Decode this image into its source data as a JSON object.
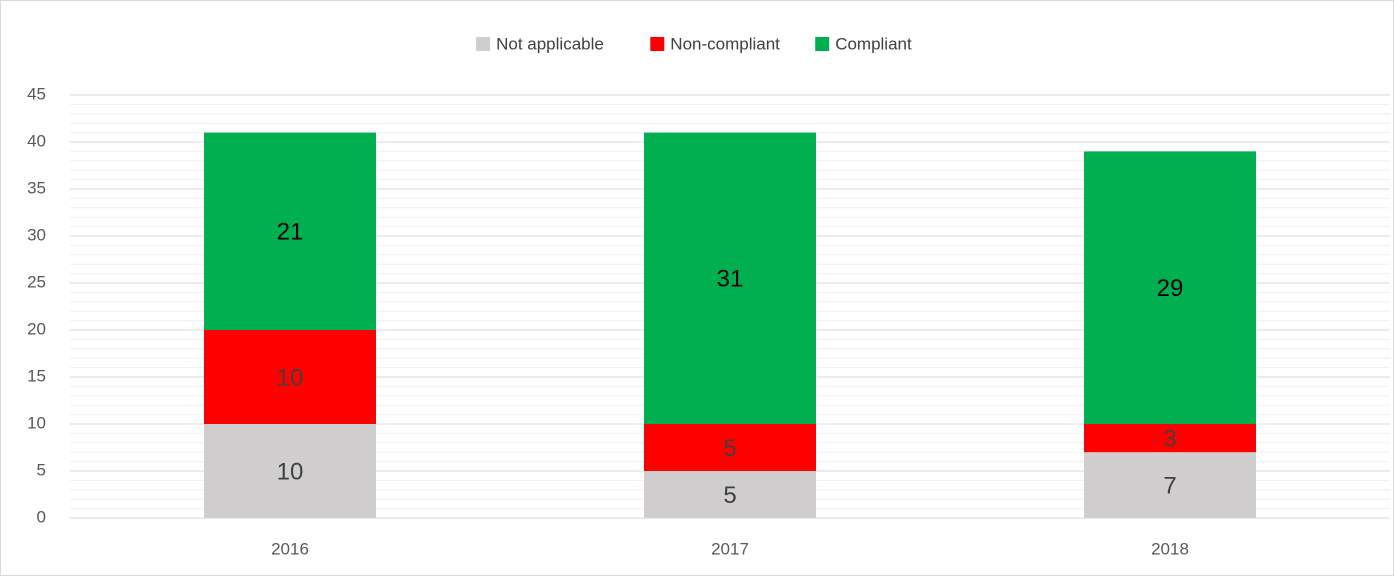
{
  "chart_data": {
    "type": "stacked_bar",
    "categories": [
      "2016",
      "2017",
      "2018"
    ],
    "series": [
      {
        "name": "Not applicable",
        "color": "#d0cece",
        "values": [
          10,
          5,
          7
        ]
      },
      {
        "name": "Non-compliant",
        "color": "#ff0000",
        "values": [
          10,
          5,
          3
        ]
      },
      {
        "name": "Compliant",
        "color": "#00b050",
        "values": [
          21,
          31,
          29
        ]
      }
    ],
    "ylim": [
      0,
      45
    ],
    "yticks": [
      0,
      5,
      10,
      15,
      20,
      25,
      30,
      35,
      40,
      45
    ],
    "grid": true,
    "minor_grid_step": 1,
    "legend": "top"
  }
}
